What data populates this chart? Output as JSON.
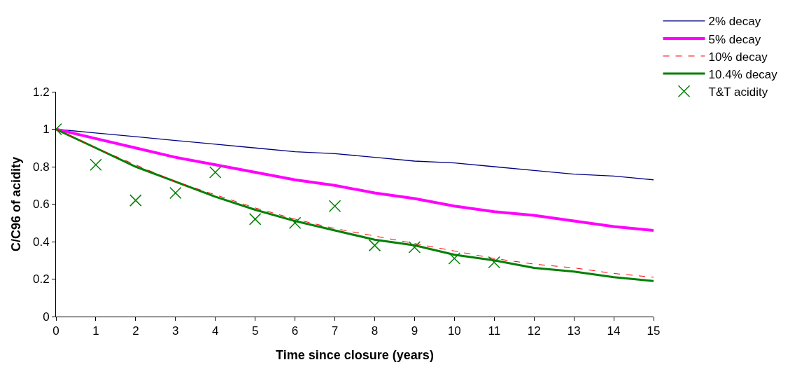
{
  "chart_data": {
    "type": "line",
    "xlabel": "Time since closure (years)",
    "ylabel": "C/C96 of acidity",
    "x": [
      0,
      1,
      2,
      3,
      4,
      5,
      6,
      7,
      8,
      9,
      10,
      11,
      12,
      13,
      14,
      15
    ],
    "xlim": [
      0,
      15
    ],
    "xticks": [
      0,
      1,
      2,
      3,
      4,
      5,
      6,
      7,
      8,
      9,
      10,
      11,
      12,
      13,
      14,
      15
    ],
    "ylim": [
      0,
      1.2
    ],
    "yticks": [
      0,
      0.2,
      0.4,
      0.6,
      0.8,
      1,
      1.2
    ],
    "grid": false,
    "legend": "top right",
    "marker": "none",
    "series": [
      {
        "name": "2% decay",
        "color": "#000080",
        "line_style": "solid",
        "values": [
          1,
          0.98,
          0.96,
          0.94,
          0.92,
          0.9,
          0.88,
          0.87,
          0.85,
          0.83,
          0.82,
          0.8,
          0.78,
          0.76,
          0.75,
          0.73
        ]
      },
      {
        "name": "5% decay",
        "color": "#ff00ff",
        "line_style": "solid",
        "values": [
          1,
          0.95,
          0.9,
          0.85,
          0.81,
          0.77,
          0.73,
          0.7,
          0.66,
          0.63,
          0.59,
          0.56,
          0.54,
          0.51,
          0.48,
          0.46
        ]
      },
      {
        "name": "10% decay",
        "color": "#ff0000",
        "line_style": "dashed",
        "values": [
          1,
          0.9,
          0.81,
          0.72,
          0.65,
          0.58,
          0.52,
          0.47,
          0.43,
          0.39,
          0.35,
          0.31,
          0.28,
          0.26,
          0.23,
          0.21
        ]
      },
      {
        "name": "10.4% decay",
        "color": "#008000",
        "line_style": "solid",
        "values": [
          1,
          0.9,
          0.8,
          0.72,
          0.64,
          0.57,
          0.51,
          0.46,
          0.41,
          0.38,
          0.33,
          0.3,
          0.26,
          0.24,
          0.21,
          0.19
        ]
      },
      {
        "name": "T&T acidity",
        "type": "scatter",
        "marker": "cross",
        "color": "#008000",
        "x": [
          0,
          1,
          2,
          3,
          4,
          5,
          6,
          7,
          8,
          9,
          10,
          11
        ],
        "values": [
          1,
          0.81,
          0.62,
          0.66,
          0.77,
          0.52,
          0.5,
          0.59,
          0.38,
          0.37,
          0.31,
          0.29
        ]
      }
    ]
  }
}
